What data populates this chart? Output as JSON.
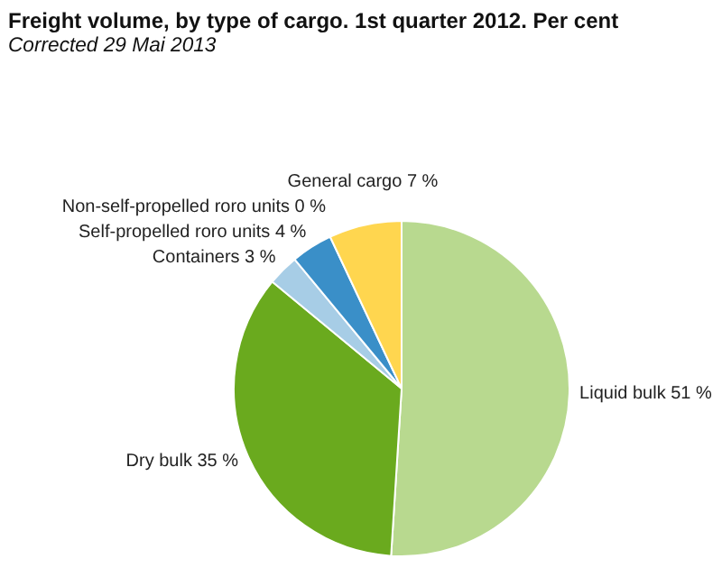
{
  "chart_data": {
    "type": "pie",
    "title": "Freight volume, by type of cargo. 1st quarter 2012. Per cent",
    "subtitle": "Corrected 29 Mai 2013",
    "categories": [
      "Liquid bulk",
      "Dry bulk",
      "Containers",
      "Self-propelled roro units",
      "Non-self-propelled roro units",
      "General cargo"
    ],
    "values": [
      51,
      35,
      3,
      4,
      0,
      7
    ],
    "value_labels": [
      "51 %",
      "35 %",
      "3 %",
      "4 %",
      "0 %",
      "7 %"
    ],
    "colors": [
      "#b8d98f",
      "#6aaa1e",
      "#a7cde6",
      "#3a8fc8",
      "#e8731c",
      "#ffd64f"
    ]
  }
}
